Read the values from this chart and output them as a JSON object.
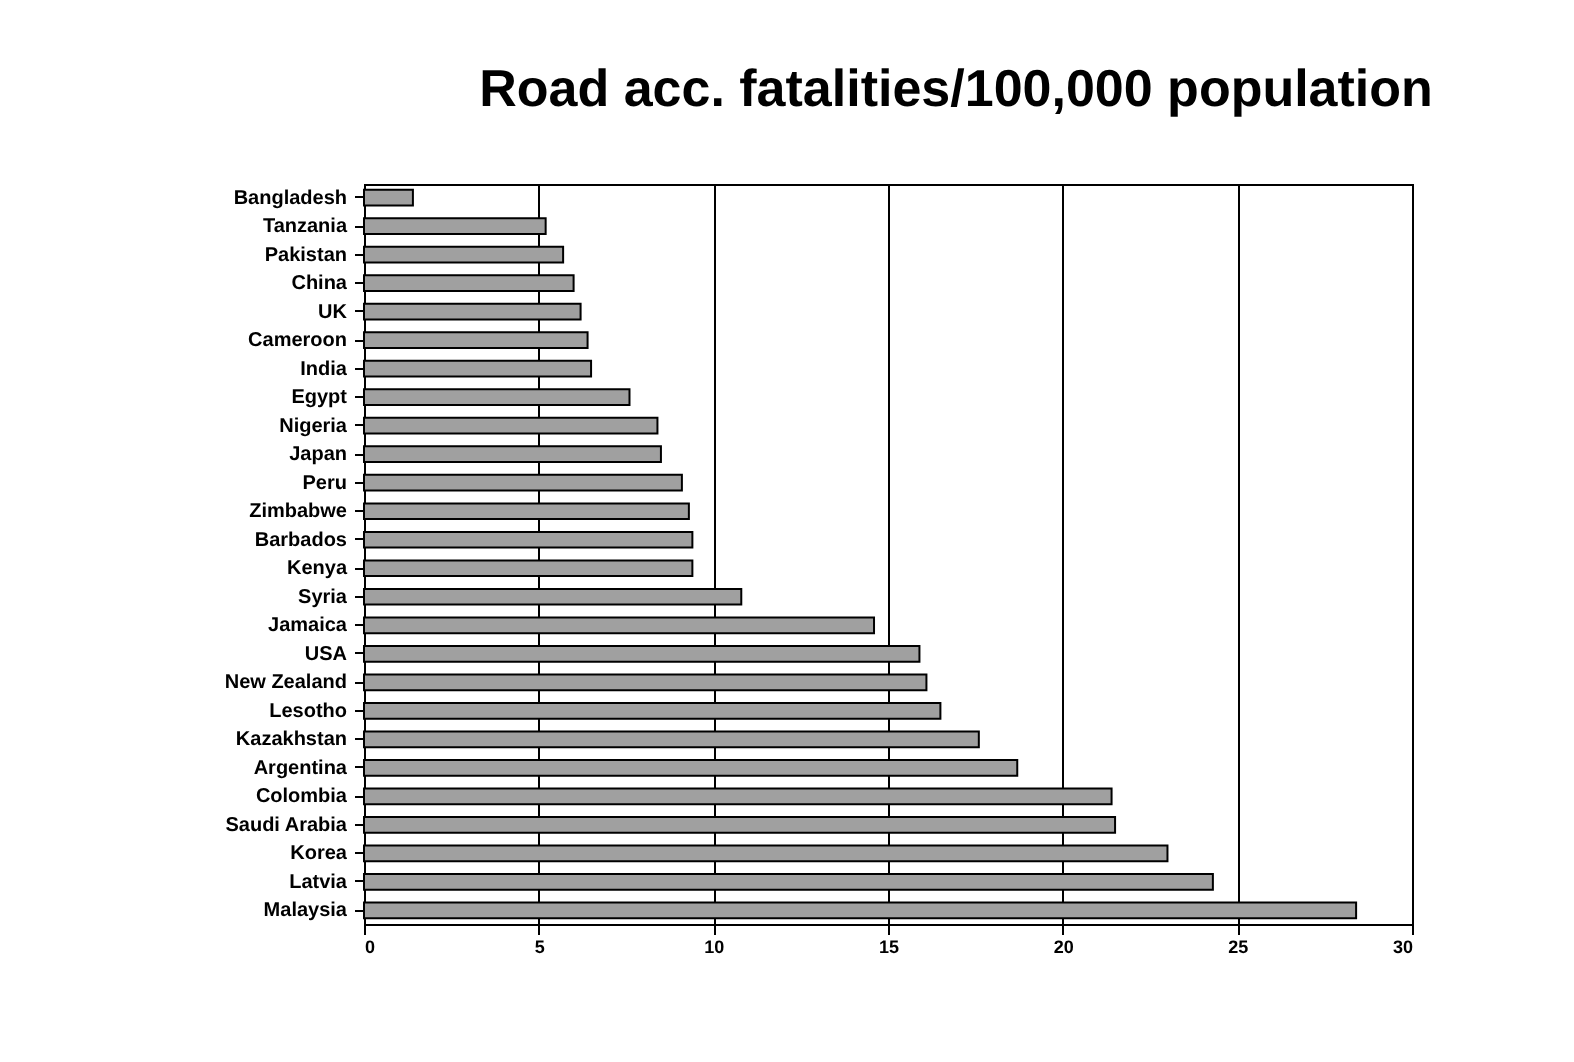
{
  "chart_data": {
    "type": "bar",
    "orientation": "horizontal",
    "title": "Road acc. fatalities/100,000 population",
    "categories": [
      "Bangladesh",
      "Tanzania",
      "Pakistan",
      "China",
      "UK",
      "Cameroon",
      "India",
      "Egypt",
      "Nigeria",
      "Japan",
      "Peru",
      "Zimbabwe",
      "Barbados",
      "Kenya",
      "Syria",
      "Jamaica",
      "USA",
      "New Zealand",
      "Lesotho",
      "Kazakhstan",
      "Argentina",
      "Colombia",
      "Saudi Arabia",
      "Korea",
      "Latvia",
      "Malaysia"
    ],
    "values": [
      1.4,
      5.2,
      5.7,
      6.0,
      6.2,
      6.4,
      6.5,
      7.6,
      8.4,
      8.5,
      9.1,
      9.3,
      9.4,
      9.4,
      10.8,
      14.6,
      15.9,
      16.1,
      16.5,
      17.6,
      18.7,
      21.4,
      21.5,
      23.0,
      24.3,
      28.4
    ],
    "color": "#a0a0a0",
    "xlim": [
      0,
      30
    ],
    "xticks": [
      0,
      5,
      10,
      15,
      20,
      25,
      30
    ],
    "grid": "x"
  }
}
